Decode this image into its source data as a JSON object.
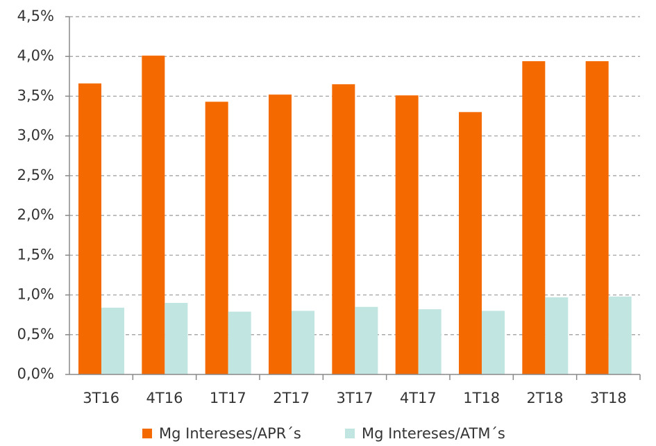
{
  "chart_data": {
    "type": "bar",
    "categories": [
      "3T16",
      "4T16",
      "1T17",
      "2T17",
      "3T17",
      "4T17",
      "1T18",
      "2T18",
      "3T18"
    ],
    "series": [
      {
        "name": "Mg Intereses/APR´s",
        "color": "#f56a00",
        "values": [
          3.66,
          4.01,
          3.43,
          3.52,
          3.65,
          3.51,
          3.3,
          3.94,
          3.94
        ]
      },
      {
        "name": "Mg Intereses/ATM´s",
        "color": "#c1e5e0",
        "values": [
          0.84,
          0.9,
          0.79,
          0.8,
          0.85,
          0.82,
          0.8,
          0.97,
          0.98
        ]
      }
    ],
    "ylim": [
      0,
      4.5
    ],
    "yticks": [
      {
        "value": 0,
        "label": "0,0%"
      },
      {
        "value": 0.5,
        "label": "0,5%"
      },
      {
        "value": 1,
        "label": "1,0%"
      },
      {
        "value": 1.5,
        "label": "1,5%"
      },
      {
        "value": 2,
        "label": "2,0%"
      },
      {
        "value": 2.5,
        "label": "2,5%"
      },
      {
        "value": 3,
        "label": "3,0%"
      },
      {
        "value": 3.5,
        "label": "3,5%"
      },
      {
        "value": 4,
        "label": "4,0%"
      },
      {
        "value": 4.5,
        "label": "4,5%"
      }
    ],
    "grid": true,
    "legend": "bottom"
  }
}
